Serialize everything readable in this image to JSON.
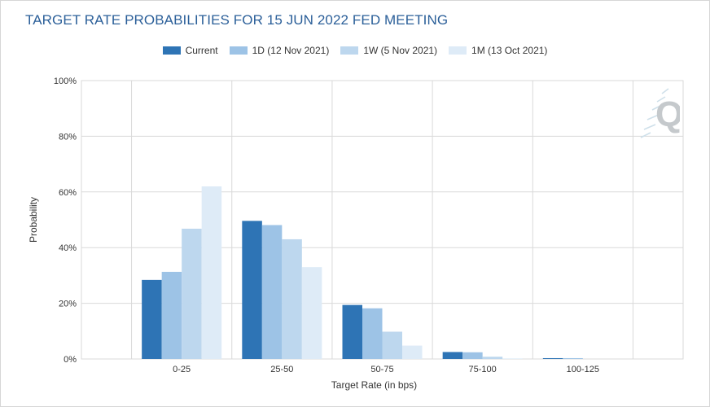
{
  "title": "TARGET RATE PROBABILITIES FOR 15 JUN 2022 FED MEETING",
  "colors": {
    "current": "#2e74b5",
    "d1": "#9dc3e6",
    "w1": "#bdd7ee",
    "m1": "#deebf7",
    "grid": "#d9d9d9",
    "title": "#2b5f99"
  },
  "legend": [
    {
      "label": "Current",
      "color": "#2e74b5"
    },
    {
      "label": "1D (12 Nov 2021)",
      "color": "#9dc3e6"
    },
    {
      "label": "1W (5 Nov 2021)",
      "color": "#bdd7ee"
    },
    {
      "label": "1M (13 Oct 2021)",
      "color": "#deebf7"
    }
  ],
  "watermark_icon": "q-logo-icon",
  "chart_data": {
    "type": "bar",
    "title": "TARGET RATE PROBABILITIES FOR 15 JUN 2022 FED MEETING",
    "xlabel": "Target Rate (in bps)",
    "ylabel": "Probability",
    "categories": [
      "0-25",
      "25-50",
      "50-75",
      "75-100",
      "100-125"
    ],
    "ylim": [
      0,
      100
    ],
    "yticks": [
      "0%",
      "20%",
      "40%",
      "60%",
      "80%",
      "100%"
    ],
    "grid": true,
    "legend_position": "top",
    "series": [
      {
        "name": "Current",
        "values": [
          28.4,
          49.6,
          19.4,
          2.5,
          0.3
        ]
      },
      {
        "name": "1D (12 Nov 2021)",
        "values": [
          31.3,
          48.1,
          18.2,
          2.4,
          0.3
        ]
      },
      {
        "name": "1W (5 Nov 2021)",
        "values": [
          46.8,
          43.0,
          9.8,
          0.8,
          0.0
        ]
      },
      {
        "name": "1M (13 Oct 2021)",
        "values": [
          62.0,
          33.0,
          4.8,
          0.2,
          0.0
        ]
      }
    ]
  }
}
